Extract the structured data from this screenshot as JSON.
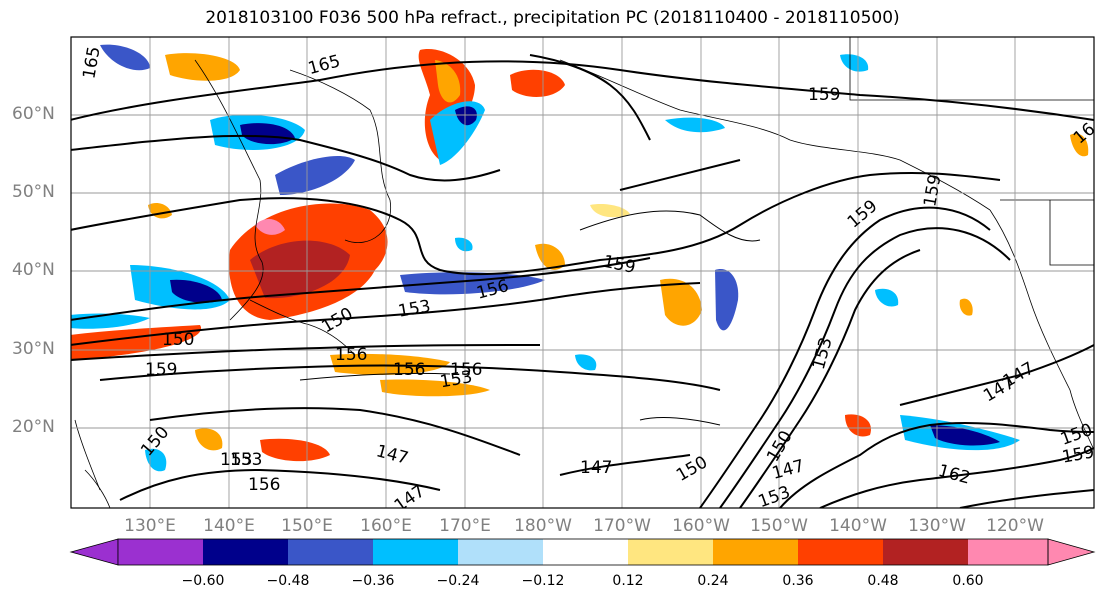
{
  "title": "2018103100 F036 500 hPa refract., precipitation PC (2018110400 - 2018110500)",
  "lat_labels": [
    "60°N",
    "50°N",
    "40°N",
    "30°N",
    "20°N"
  ],
  "lon_labels": [
    "130°E",
    "140°E",
    "150°E",
    "160°E",
    "170°E",
    "180°W",
    "170°W",
    "160°W",
    "150°W",
    "140°W",
    "130°W",
    "120°W"
  ],
  "colorbar": {
    "ticks": [
      "−0.60",
      "−0.48",
      "−0.36",
      "−0.24",
      "−0.12",
      "0.12",
      "0.24",
      "0.36",
      "0.48",
      "0.60"
    ],
    "colors": [
      "#9b30d0",
      "#00008b",
      "#3a56c8",
      "#00bfff",
      "#b0e0fa",
      "#ffffff",
      "#ffe680",
      "#ffa500",
      "#ff4000",
      "#b22222",
      "#ff88b0"
    ]
  },
  "contour_labels": [
    "165",
    "165",
    "159",
    "159",
    "159",
    "159",
    "156",
    "153",
    "150",
    "150",
    "159",
    "156",
    "156",
    "153",
    "156",
    "153",
    "147",
    "147",
    "147",
    "150",
    "150",
    "153",
    "147",
    "153",
    "150",
    "150",
    "162",
    "147",
    "159",
    "16",
    "153",
    "156",
    "147"
  ]
}
